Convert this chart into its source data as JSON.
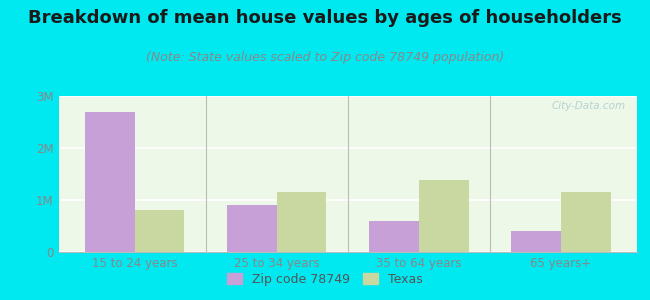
{
  "title": "Breakdown of mean house values by ages of householders",
  "subtitle": "(Note: State values scaled to Zip code 78749 population)",
  "categories": [
    "15 to 24 years",
    "25 to 34 years",
    "35 to 64 years",
    "65 years+"
  ],
  "zip_values": [
    2700000,
    900000,
    600000,
    400000
  ],
  "texas_values": [
    800000,
    1150000,
    1380000,
    1150000
  ],
  "zip_color": "#c8a0d8",
  "texas_color": "#c8d8a0",
  "background_outer": "#00e8f0",
  "background_inner": "#eef8e8",
  "ylim": [
    0,
    3000000
  ],
  "yticks": [
    0,
    1000000,
    2000000,
    3000000
  ],
  "ytick_labels": [
    "0",
    "1M",
    "2M",
    "3M"
  ],
  "legend_zip": "Zip code 78749",
  "legend_texas": "Texas",
  "bar_width": 0.35,
  "title_fontsize": 13,
  "subtitle_fontsize": 9,
  "watermark": "City-Data.com"
}
